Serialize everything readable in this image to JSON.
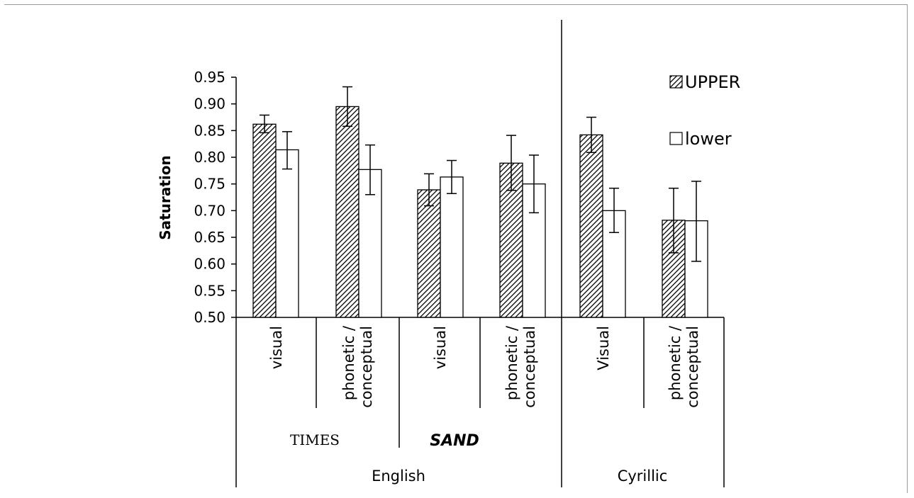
{
  "chart_data": {
    "type": "bar",
    "ylabel": "Saturation",
    "ylim": [
      0.5,
      0.95
    ],
    "yticks": [
      "0.50",
      "0.55",
      "0.60",
      "0.65",
      "0.70",
      "0.75",
      "0.80",
      "0.85",
      "0.90",
      "0.95"
    ],
    "categories": [
      "visual",
      "phonetic / conceptual",
      "visual",
      "phonetic / conceptual",
      "Visual",
      "phonetic / conceptual"
    ],
    "fonts": [
      "TIMES",
      "SAND"
    ],
    "scripts": [
      "English",
      "Cyrillic"
    ],
    "series": [
      {
        "name": "UPPER",
        "values": [
          0.862,
          0.895,
          0.739,
          0.789,
          0.842,
          0.682
        ],
        "err_low": [
          0.846,
          0.858,
          0.709,
          0.738,
          0.809,
          0.621
        ],
        "err_high": [
          0.879,
          0.932,
          0.769,
          0.841,
          0.875,
          0.742
        ]
      },
      {
        "name": "lower",
        "values": [
          0.814,
          0.777,
          0.763,
          0.75,
          0.7,
          0.681
        ],
        "err_low": [
          0.778,
          0.73,
          0.732,
          0.696,
          0.659,
          0.605
        ],
        "err_high": [
          0.848,
          0.823,
          0.794,
          0.804,
          0.742,
          0.755
        ]
      }
    ],
    "legend_position": "top-right",
    "grid": false
  },
  "colors": {
    "upper_fill": "hatched",
    "lower_fill": "#ffffff",
    "stroke": "#000000"
  }
}
